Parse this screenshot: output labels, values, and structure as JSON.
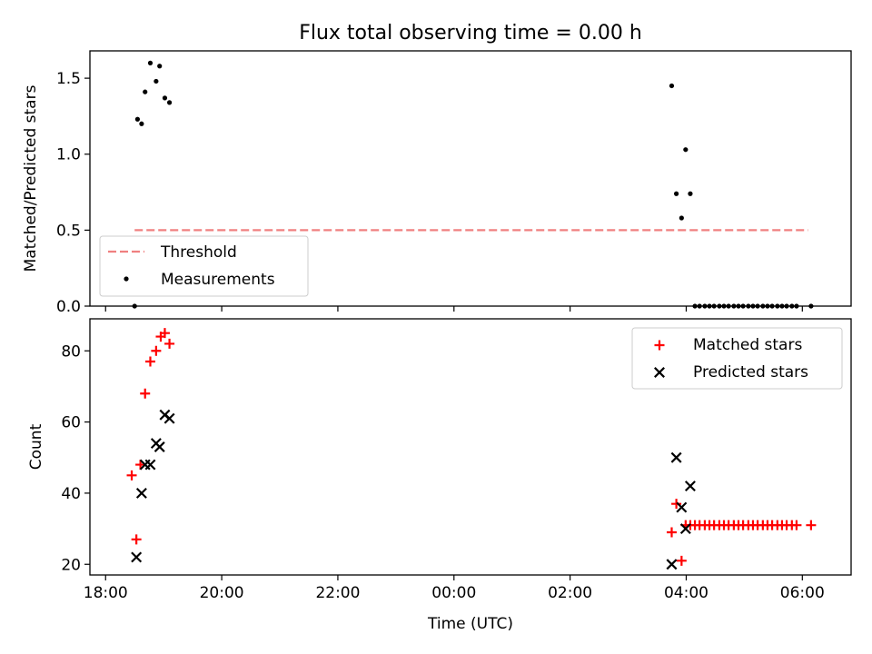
{
  "chart_data": [
    {
      "type": "scatter",
      "title": "Flux total observing time = 0.00 h",
      "xlabel": "",
      "ylabel": "Matched/Predicted stars",
      "xlim": [
        -6.27,
        6.84
      ],
      "ylim": [
        0,
        1.68
      ],
      "x_ticks": [
        -6,
        -4,
        -2,
        0,
        2,
        4,
        6
      ],
      "x_tick_labels": [
        "",
        "",
        "",
        "",
        "",
        "",
        ""
      ],
      "y_ticks": [
        0,
        0.5,
        1.0,
        1.5
      ],
      "y_tick_labels": [
        "0.0",
        "0.5",
        "1.0",
        "1.5"
      ],
      "legend_position": "lower-left",
      "threshold": {
        "name": "Threshold",
        "value": 0.5,
        "x_start": -5.5,
        "x_end": 6.1,
        "color": "#f08080",
        "style": "dashed"
      },
      "series": [
        {
          "name": "Measurements",
          "color": "#000000",
          "marker": "dot",
          "points": [
            [
              -5.5,
              0.0
            ],
            [
              -5.45,
              1.23
            ],
            [
              -5.38,
              1.2
            ],
            [
              -5.32,
              1.41
            ],
            [
              -5.23,
              1.6
            ],
            [
              -5.13,
              1.48
            ],
            [
              -5.07,
              1.58
            ],
            [
              -4.98,
              1.37
            ],
            [
              -4.9,
              1.34
            ],
            [
              3.75,
              1.45
            ],
            [
              3.83,
              0.74
            ],
            [
              3.92,
              0.58
            ],
            [
              3.99,
              1.03
            ],
            [
              4.07,
              0.74
            ],
            [
              4.15,
              0.0
            ],
            [
              4.23,
              0.0
            ],
            [
              4.32,
              0.0
            ],
            [
              4.4,
              0.0
            ],
            [
              4.48,
              0.0
            ],
            [
              4.57,
              0.0
            ],
            [
              4.65,
              0.0
            ],
            [
              4.73,
              0.0
            ],
            [
              4.82,
              0.0
            ],
            [
              4.9,
              0.0
            ],
            [
              4.98,
              0.0
            ],
            [
              5.07,
              0.0
            ],
            [
              5.15,
              0.0
            ],
            [
              5.23,
              0.0
            ],
            [
              5.32,
              0.0
            ],
            [
              5.4,
              0.0
            ],
            [
              5.48,
              0.0
            ],
            [
              5.57,
              0.0
            ],
            [
              5.65,
              0.0
            ],
            [
              5.73,
              0.0
            ],
            [
              5.82,
              0.0
            ],
            [
              5.9,
              0.0
            ],
            [
              6.15,
              0.0
            ]
          ]
        }
      ]
    },
    {
      "type": "scatter",
      "title": "",
      "xlabel": "Time (UTC)",
      "ylabel": "Count",
      "xlim": [
        -6.27,
        6.84
      ],
      "ylim": [
        17,
        89
      ],
      "x_ticks": [
        -6,
        -4,
        -2,
        0,
        2,
        4,
        6
      ],
      "x_tick_labels": [
        "18:00",
        "20:00",
        "22:00",
        "00:00",
        "02:00",
        "04:00",
        "06:00"
      ],
      "y_ticks": [
        20,
        40,
        60,
        80
      ],
      "y_tick_labels": [
        "20",
        "40",
        "60",
        "80"
      ],
      "legend_position": "upper-right",
      "series": [
        {
          "name": "Matched stars",
          "color": "#ff0000",
          "marker": "plus",
          "points": [
            [
              -5.55,
              45
            ],
            [
              -5.47,
              27
            ],
            [
              -5.4,
              48
            ],
            [
              -5.32,
              68
            ],
            [
              -5.23,
              77
            ],
            [
              -5.13,
              80
            ],
            [
              -5.05,
              84
            ],
            [
              -4.98,
              85
            ],
            [
              -4.9,
              82
            ],
            [
              3.75,
              29
            ],
            [
              3.83,
              37
            ],
            [
              3.92,
              21
            ],
            [
              3.99,
              31
            ],
            [
              4.07,
              31
            ],
            [
              4.15,
              31
            ],
            [
              4.23,
              31
            ],
            [
              4.32,
              31
            ],
            [
              4.4,
              31
            ],
            [
              4.48,
              31
            ],
            [
              4.57,
              31
            ],
            [
              4.65,
              31
            ],
            [
              4.73,
              31
            ],
            [
              4.82,
              31
            ],
            [
              4.9,
              31
            ],
            [
              4.98,
              31
            ],
            [
              5.07,
              31
            ],
            [
              5.15,
              31
            ],
            [
              5.23,
              31
            ],
            [
              5.32,
              31
            ],
            [
              5.4,
              31
            ],
            [
              5.48,
              31
            ],
            [
              5.57,
              31
            ],
            [
              5.65,
              31
            ],
            [
              5.73,
              31
            ],
            [
              5.82,
              31
            ],
            [
              5.9,
              31
            ],
            [
              6.15,
              31
            ]
          ]
        },
        {
          "name": "Predicted stars",
          "color": "#000000",
          "marker": "x",
          "points": [
            [
              -5.47,
              22
            ],
            [
              -5.38,
              40
            ],
            [
              -5.32,
              48
            ],
            [
              -5.23,
              48
            ],
            [
              -5.13,
              54
            ],
            [
              -5.07,
              53
            ],
            [
              -4.98,
              62
            ],
            [
              -4.9,
              61
            ],
            [
              3.75,
              20
            ],
            [
              3.83,
              50
            ],
            [
              3.92,
              36
            ],
            [
              3.99,
              30
            ],
            [
              4.07,
              42
            ]
          ]
        }
      ]
    }
  ]
}
